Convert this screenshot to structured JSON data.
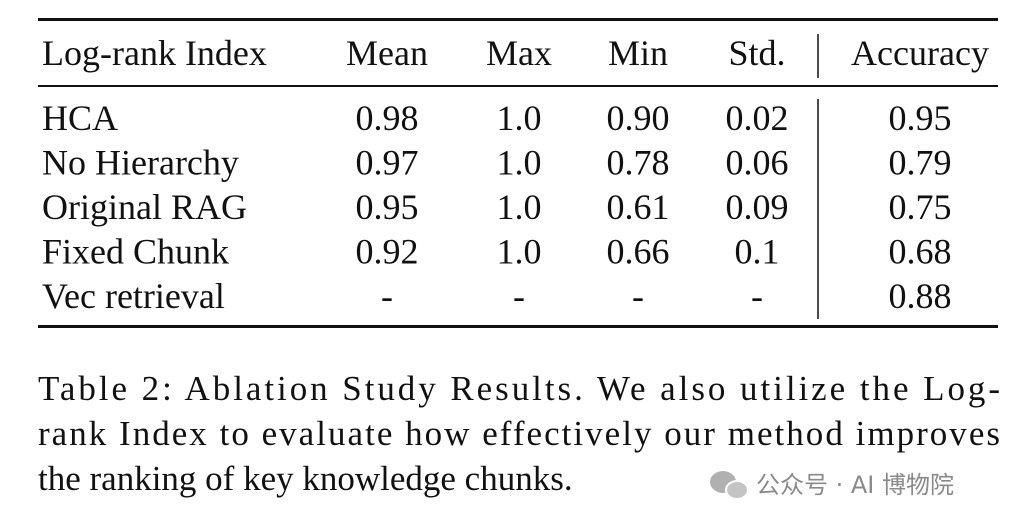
{
  "table": {
    "header": [
      "Log-rank Index",
      "Mean",
      "Max",
      "Min",
      "Std.",
      "Accuracy"
    ],
    "rows": [
      [
        "HCA",
        "0.98",
        "1.0",
        "0.90",
        "0.02",
        "0.95"
      ],
      [
        "No Hierarchy",
        "0.97",
        "1.0",
        "0.78",
        "0.06",
        "0.79"
      ],
      [
        "Original RAG",
        "0.95",
        "1.0",
        "0.61",
        "0.09",
        "0.75"
      ],
      [
        "Fixed Chunk",
        "0.92",
        "1.0",
        "0.66",
        "0.1",
        "0.68"
      ],
      [
        "Vec retrieval",
        "-",
        "-",
        "-",
        "-",
        "0.88"
      ]
    ]
  },
  "caption": [
    "Table 2: Ablation Study Results. We also utilize the Log-",
    "rank Index to evaluate how effectively our method improves",
    "the ranking of key knowledge chunks."
  ],
  "watermark": "公众号 · AI 博物院"
}
